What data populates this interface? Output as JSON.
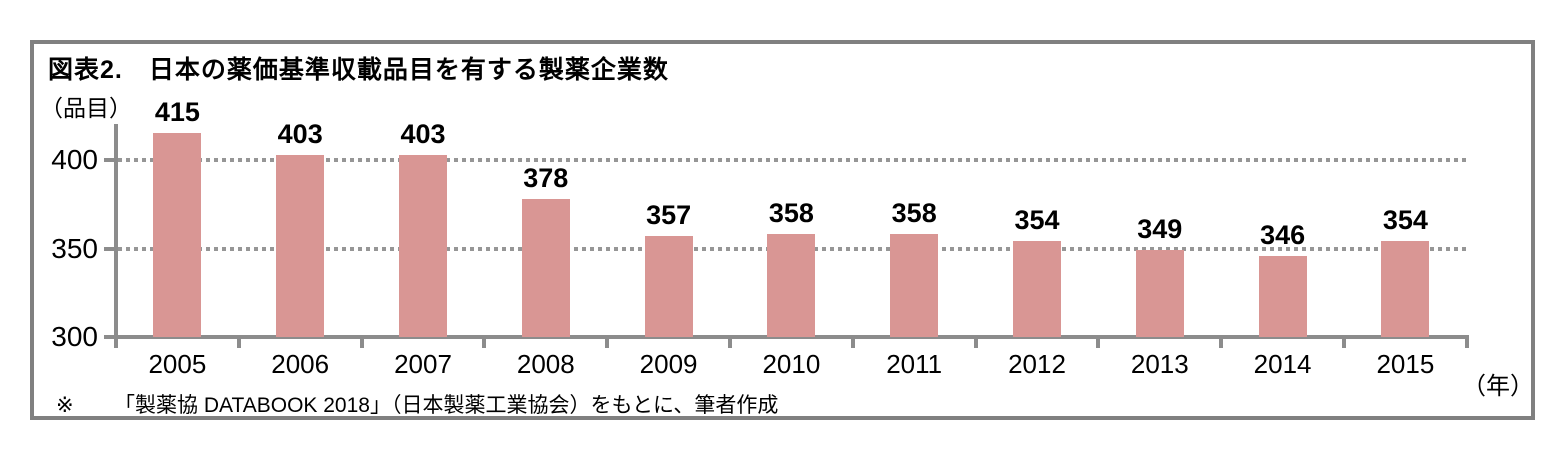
{
  "header": {
    "title": "図表2.　日本の薬価基準収載品目を有する製薬企業数"
  },
  "axes": {
    "y_unit_label": "（品目）",
    "x_unit_label": "（年）"
  },
  "chart_data": {
    "type": "bar",
    "title": "図表2.　日本の薬価基準収載品目を有する製薬企業数",
    "categories": [
      "2005",
      "2006",
      "2007",
      "2008",
      "2009",
      "2010",
      "2011",
      "2012",
      "2013",
      "2014",
      "2015"
    ],
    "values": [
      415,
      403,
      403,
      378,
      357,
      358,
      358,
      354,
      349,
      346,
      354
    ],
    "value_labels_shown": true,
    "xlabel": "（年）",
    "ylabel": "（品目）",
    "ylim": [
      300,
      420
    ],
    "yticks": [
      300,
      350,
      400
    ],
    "gridline_values": [
      350,
      400
    ],
    "grid_style": "horizontal dotted",
    "legend": "none",
    "bar_color": "#D99694"
  },
  "footnote": {
    "marker": "※",
    "text": "「製薬協 DATABOOK 2018」（日本製薬工業協会）をもとに、筆者作成"
  },
  "colors": {
    "bar": "#D99694",
    "axis": "#8C8C8C",
    "grid": "#969696",
    "frame_border": "#808080",
    "text": "#000000",
    "background": "#FFFFFF"
  }
}
